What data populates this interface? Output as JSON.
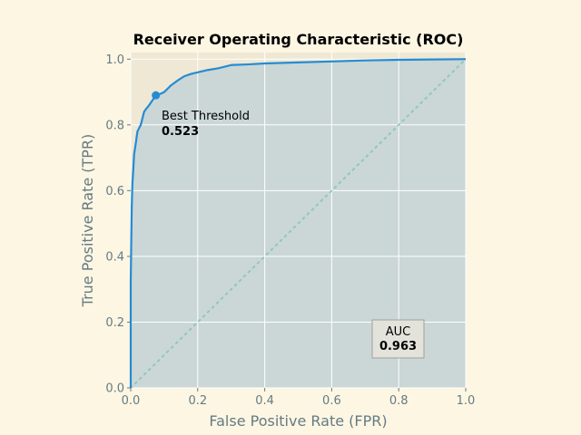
{
  "chart_data": {
    "type": "line",
    "title": "Receiver Operating Characteristic (ROC)",
    "xlabel": "False Positive Rate (FPR)",
    "ylabel": "True Positive Rate (TPR)",
    "xlim": [
      0,
      1
    ],
    "ylim": [
      0,
      1.02
    ],
    "xticks": [
      0.0,
      0.2,
      0.4,
      0.6,
      0.8,
      1.0
    ],
    "yticks": [
      0.0,
      0.2,
      0.4,
      0.6,
      0.8,
      1.0
    ],
    "xtick_labels": [
      "0.0",
      "0.2",
      "0.4",
      "0.6",
      "0.8",
      "1.0"
    ],
    "ytick_labels": [
      "0.0",
      "0.2",
      "0.4",
      "0.6",
      "0.8",
      "1.0"
    ],
    "grid": true,
    "series": [
      {
        "style": "solid",
        "filled": true,
        "x": [
          0.0,
          0.0,
          0.003,
          0.005,
          0.008,
          0.01,
          0.013,
          0.016,
          0.02,
          0.025,
          0.03,
          0.035,
          0.04,
          0.047,
          0.055,
          0.065,
          0.075,
          0.09,
          0.1,
          0.12,
          0.14,
          0.16,
          0.18,
          0.2,
          0.23,
          0.26,
          0.3,
          0.35,
          0.4,
          0.5,
          0.6,
          0.7,
          0.8,
          0.9,
          1.0
        ],
        "y": [
          0.0,
          0.32,
          0.55,
          0.62,
          0.67,
          0.71,
          0.73,
          0.75,
          0.78,
          0.79,
          0.8,
          0.82,
          0.84,
          0.85,
          0.86,
          0.875,
          0.89,
          0.895,
          0.9,
          0.92,
          0.935,
          0.948,
          0.955,
          0.96,
          0.967,
          0.972,
          0.982,
          0.984,
          0.987,
          0.99,
          0.993,
          0.996,
          0.998,
          0.999,
          1.0
        ]
      },
      {
        "style": "dotted",
        "x": [
          0.0,
          1.0
        ],
        "y": [
          0.0,
          1.0
        ]
      }
    ],
    "best_point": {
      "x": 0.075,
      "y": 0.89
    },
    "annotations": {
      "best_threshold_label": "Best Threshold",
      "best_threshold_value": "0.523",
      "auc_label": "AUC",
      "auc_value": "0.963"
    }
  },
  "colors": {
    "figure_bg": "#fdf6e3",
    "axes_bg": "#eee8d5",
    "roc_line": "#268bd2",
    "fill": "#c5d5d6",
    "diagonal": "#93c6b9",
    "grid": "#ffffff",
    "box_face": "#e3e3dc",
    "box_edge": "#a0a09a",
    "text_muted": "#657b83"
  }
}
